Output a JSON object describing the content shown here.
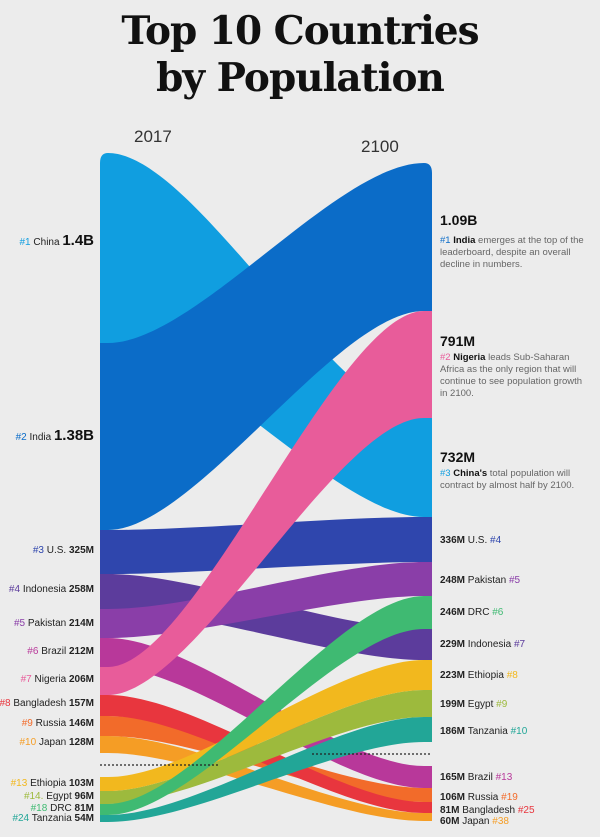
{
  "title": [
    "Top 10 Countries",
    "by Population"
  ],
  "year_left": "2017",
  "year_right": "2100",
  "chart_data": {
    "type": "sankey",
    "title": "Top 10 Countries by Population",
    "left_year": "2017",
    "right_year": "2100",
    "countries": [
      {
        "name": "China",
        "r17": "#1",
        "v17": "1.4B",
        "p17": 1400,
        "r00": "#3",
        "v00": "732M",
        "p00": 732,
        "color": "#109ee0"
      },
      {
        "name": "India",
        "r17": "#2",
        "v17": "1.38B",
        "p17": 1380,
        "r00": "#1",
        "v00": "1.09B",
        "p00": 1090,
        "color": "#0b6cc8"
      },
      {
        "name": "U.S.",
        "r17": "#3",
        "v17": "325M",
        "p17": 325,
        "r00": "#4",
        "v00": "336M",
        "p00": 336,
        "color": "#2f46ad"
      },
      {
        "name": "Indonesia",
        "r17": "#4",
        "v17": "258M",
        "p17": 258,
        "r00": "#7",
        "v00": "229M",
        "p00": 229,
        "color": "#5c3c9c"
      },
      {
        "name": "Pakistan",
        "r17": "#5",
        "v17": "214M",
        "p17": 214,
        "r00": "#5",
        "v00": "248M",
        "p00": 248,
        "color": "#8a3ea8"
      },
      {
        "name": "Brazil",
        "r17": "#6",
        "v17": "212M",
        "p17": 212,
        "r00": "#13",
        "v00": "165M",
        "p00": 165,
        "color": "#b8389a"
      },
      {
        "name": "Nigeria",
        "r17": "#7",
        "v17": "206M",
        "p17": 206,
        "r00": "#2",
        "v00": "791M",
        "p00": 791,
        "color": "#e85c9a"
      },
      {
        "name": "Bangladesh",
        "r17": "#8",
        "v17": "157M",
        "p17": 157,
        "r00": "#25",
        "v00": "81M",
        "p00": 81,
        "color": "#e8363e"
      },
      {
        "name": "Russia",
        "r17": "#9",
        "v17": "146M",
        "p17": 146,
        "r00": "#19",
        "v00": "106M",
        "p00": 106,
        "color": "#f26b2a"
      },
      {
        "name": "Japan",
        "r17": "#10",
        "v17": "128M",
        "p17": 128,
        "r00": "#38",
        "v00": "60M",
        "p00": 60,
        "color": "#f59d25"
      },
      {
        "name": "Ethiopia",
        "r17": "#13",
        "v17": "103M",
        "p17": 103,
        "r00": "#8",
        "v00": "223M",
        "p00": 223,
        "color": "#f2b81e"
      },
      {
        "name": "Egypt",
        "r17": "#14",
        "v17": "96M",
        "p17": 96,
        "r00": "#9",
        "v00": "199M",
        "p00": 199,
        "color": "#9dba3d"
      },
      {
        "name": "DRC",
        "r17": "#18",
        "v17": "81M",
        "p17": 81,
        "r00": "#6",
        "v00": "246M",
        "p00": 246,
        "color": "#3fba72"
      },
      {
        "name": "Tanzania",
        "r17": "#24",
        "v17": "54M",
        "p17": 54,
        "r00": "#10",
        "v00": "186M",
        "p00": 186,
        "color": "#22a697"
      }
    ]
  },
  "left_labels": [
    {
      "rank": "#1",
      "name": "China",
      "value": "1.4B",
      "big": true
    },
    {
      "rank": "#2",
      "name": "India",
      "value": "1.38B",
      "big": true
    },
    {
      "rank": "#3",
      "name": "U.S.",
      "value": "325M"
    },
    {
      "rank": "#4",
      "name": "Indonesia",
      "value": "258M"
    },
    {
      "rank": "#5",
      "name": "Pakistan",
      "value": "214M"
    },
    {
      "rank": "#6",
      "name": "Brazil",
      "value": "212M"
    },
    {
      "rank": "#7",
      "name": "Nigeria",
      "value": "206M"
    },
    {
      "rank": "#8",
      "name": "Bangladesh",
      "value": "157M"
    },
    {
      "rank": "#9",
      "name": "Russia",
      "value": "146M"
    },
    {
      "rank": "#10",
      "name": "Japan",
      "value": "128M"
    },
    {
      "rank": "#13",
      "name": "Ethiopia",
      "value": "103M"
    },
    {
      "rank": "#14.",
      "name": "Egypt",
      "value": "96M"
    },
    {
      "rank": "#18",
      "name": "DRC",
      "value": "81M"
    },
    {
      "rank": "#24",
      "name": "Tanzania",
      "value": "54M"
    }
  ],
  "right_labels": [
    {
      "value": "336M",
      "name": "U.S.",
      "rank": "#4"
    },
    {
      "value": "248M",
      "name": "Pakistan",
      "rank": "#5"
    },
    {
      "value": "246M",
      "name": "DRC",
      "rank": "#6"
    },
    {
      "value": "229M",
      "name": "Indonesia",
      "rank": "#7"
    },
    {
      "value": "223M",
      "name": "Ethiopia",
      "rank": "#8"
    },
    {
      "value": "199M",
      "name": "Egypt",
      "rank": "#9"
    },
    {
      "value": "186M",
      "name": "Tanzania",
      "rank": "#10"
    },
    {
      "value": "165M",
      "name": "Brazil",
      "rank": "#13"
    },
    {
      "value": "106M",
      "name": "Russia",
      "rank": "#19"
    },
    {
      "value": "81M",
      "name": "Bangladesh",
      "rank": "#25"
    },
    {
      "value": "60M",
      "name": "Japan",
      "rank": "#38"
    }
  ],
  "annotations": [
    {
      "value": "1.09B",
      "rank": "#1",
      "country": "India",
      "text": "emerges at the top of the leaderboard, despite an overall decline in numbers."
    },
    {
      "value": "791M",
      "rank": "#2",
      "country": "Nigeria",
      "text": "leads Sub-Saharan Africa as the only region that will continue to see population growth in 2100."
    },
    {
      "value": "732M",
      "rank": "#3",
      "country": "China's",
      "text": "total population will contract by almost half by 2100."
    }
  ]
}
